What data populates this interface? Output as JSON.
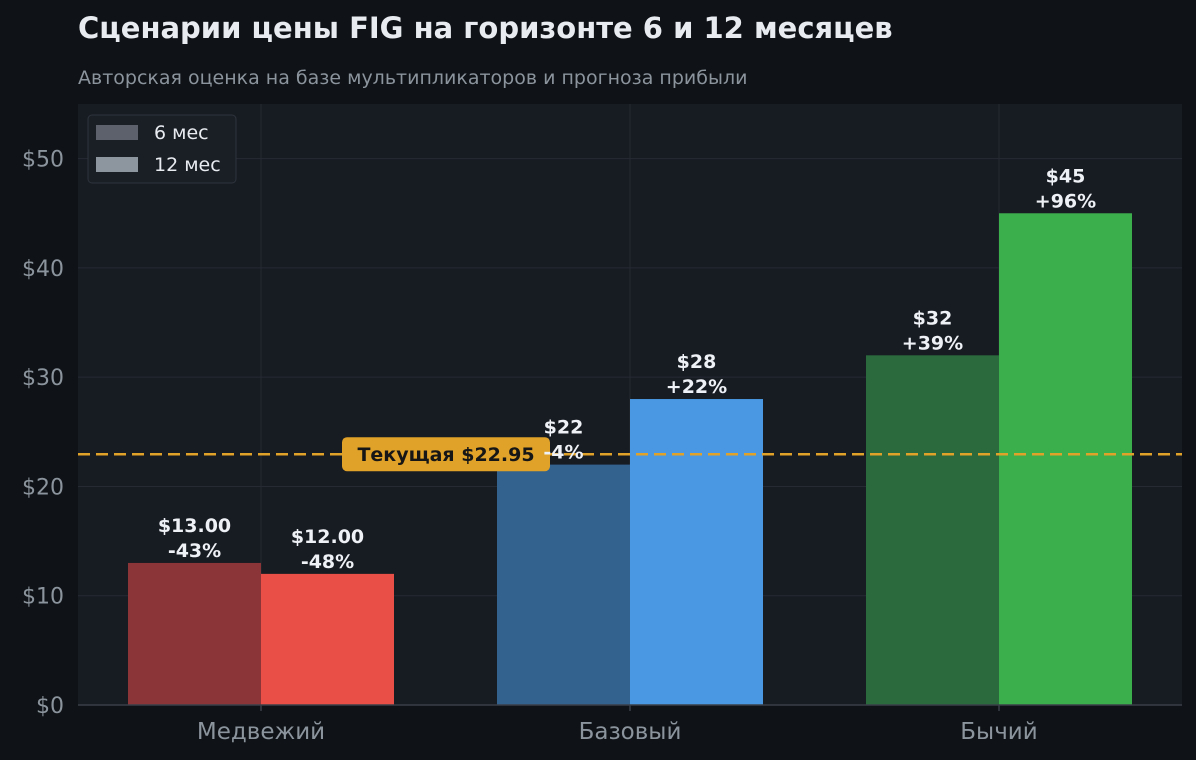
{
  "title": "Сценарии цены FIG на горизонте 6 и 12 месяцев",
  "subtitle": "Авторская оценка на базе мультипликаторов и прогноза прибыли",
  "chart_data": {
    "type": "bar",
    "categories": [
      "Медвежий",
      "Базовый",
      "Бычий"
    ],
    "series": [
      {
        "name": "6 мес",
        "values": [
          13,
          22,
          32
        ],
        "labels": [
          "$13.00",
          "$22",
          "$32"
        ],
        "changes": [
          "-43%",
          "-4%",
          "+39%"
        ],
        "colors": [
          "#8b3538",
          "#33628e",
          "#2b6a3d"
        ]
      },
      {
        "name": "12 мес",
        "values": [
          12,
          28,
          45
        ],
        "labels": [
          "$12.00",
          "$28",
          "$45"
        ],
        "changes": [
          "-48%",
          "+22%",
          "+96%"
        ],
        "colors": [
          "#ea4f47",
          "#4a98e3",
          "#3caf4d"
        ]
      }
    ],
    "ylim": [
      0,
      55
    ],
    "yticks": [
      0,
      10,
      20,
      30,
      40,
      50
    ],
    "ytick_labels": [
      "$0",
      "$10",
      "$20",
      "$30",
      "$40",
      "$50"
    ],
    "grid": true,
    "legend": {
      "position": "top-left",
      "items": [
        {
          "label": "6 мес",
          "color": "#5c616b"
        },
        {
          "label": "12 мес",
          "color": "#8d959e"
        }
      ]
    },
    "reference_line": {
      "value": 22.95,
      "label": "Текущая $22.95",
      "color": "#e0a228"
    }
  }
}
